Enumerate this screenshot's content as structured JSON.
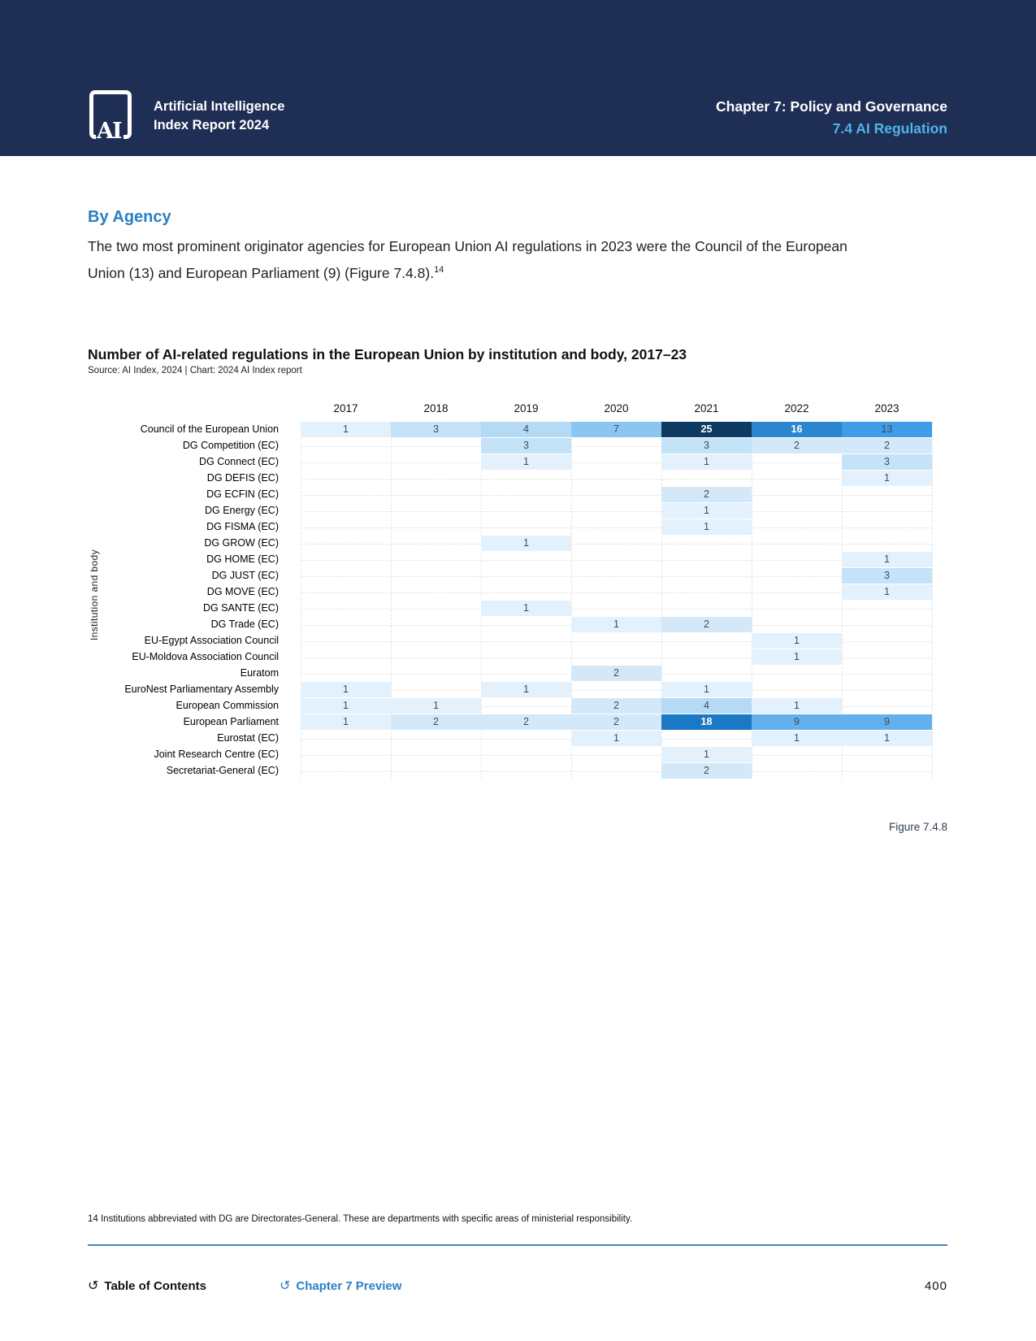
{
  "colors": {
    "navy": "#1f2e55",
    "accent": "#4db6ea",
    "heading_blue": "#2980c4",
    "link_blue": "#2b7fc7",
    "divider": "#4484bc",
    "cell_text": "#3f4d5a",
    "cell_text_light": "#ffffff"
  },
  "header": {
    "logo_mark": "AI",
    "logo_line1": "Artificial Intelligence",
    "logo_line2": "Index Report 2024",
    "chapter": "Chapter 7: Policy and Governance",
    "section": "7.4 AI Regulation"
  },
  "section": {
    "heading": "By Agency",
    "body": "The two most prominent originator agencies for European Union AI regulations in 2023 were the Council of the European Union (13) and European Parliament (9) (Figure 7.4.8).",
    "footnote_ref": "14"
  },
  "chart": {
    "title": "Number of AI-related regulations in the European Union by institution and body, 2017–23",
    "source": "Source: AI Index, 2024 | Chart: 2024 AI Index report",
    "y_axis_label": "Institution and body",
    "figure_caption": "Figure 7.4.8"
  },
  "chart_data": {
    "type": "heatmap",
    "x": [
      "2017",
      "2018",
      "2019",
      "2020",
      "2021",
      "2022",
      "2023"
    ],
    "xlabel": "",
    "ylabel": "Institution and body",
    "rows": [
      {
        "institution": "Council of the European Union",
        "values": [
          1,
          3,
          4,
          7,
          25,
          16,
          13
        ]
      },
      {
        "institution": "DG Competition (EC)",
        "values": [
          null,
          null,
          3,
          null,
          3,
          2,
          2
        ]
      },
      {
        "institution": "DG Connect (EC)",
        "values": [
          null,
          null,
          1,
          null,
          1,
          null,
          3
        ]
      },
      {
        "institution": "DG DEFIS (EC)",
        "values": [
          null,
          null,
          null,
          null,
          null,
          null,
          1
        ]
      },
      {
        "institution": "DG ECFIN (EC)",
        "values": [
          null,
          null,
          null,
          null,
          2,
          null,
          null
        ]
      },
      {
        "institution": "DG Energy (EC)",
        "values": [
          null,
          null,
          null,
          null,
          1,
          null,
          null
        ]
      },
      {
        "institution": "DG FISMA (EC)",
        "values": [
          null,
          null,
          null,
          null,
          1,
          null,
          null
        ]
      },
      {
        "institution": "DG GROW (EC)",
        "values": [
          null,
          null,
          1,
          null,
          null,
          null,
          null
        ]
      },
      {
        "institution": "DG HOME (EC)",
        "values": [
          null,
          null,
          null,
          null,
          null,
          null,
          1
        ]
      },
      {
        "institution": "DG JUST (EC)",
        "values": [
          null,
          null,
          null,
          null,
          null,
          null,
          3
        ]
      },
      {
        "institution": "DG MOVE (EC)",
        "values": [
          null,
          null,
          null,
          null,
          null,
          null,
          1
        ]
      },
      {
        "institution": "DG SANTE (EC)",
        "values": [
          null,
          null,
          1,
          null,
          null,
          null,
          null
        ]
      },
      {
        "institution": "DG Trade (EC)",
        "values": [
          null,
          null,
          null,
          1,
          2,
          null,
          null
        ]
      },
      {
        "institution": "EU-Egypt Association Council",
        "values": [
          null,
          null,
          null,
          null,
          null,
          1,
          null
        ]
      },
      {
        "institution": "EU-Moldova Association Council",
        "values": [
          null,
          null,
          null,
          null,
          null,
          1,
          null
        ]
      },
      {
        "institution": "Euratom",
        "values": [
          null,
          null,
          null,
          2,
          null,
          null,
          null
        ]
      },
      {
        "institution": "EuroNest Parliamentary Assembly",
        "values": [
          1,
          null,
          1,
          null,
          1,
          null,
          null
        ]
      },
      {
        "institution": "European Commission",
        "values": [
          1,
          1,
          null,
          2,
          4,
          1,
          null
        ]
      },
      {
        "institution": "European Parliament",
        "values": [
          1,
          2,
          2,
          2,
          18,
          9,
          9
        ]
      },
      {
        "institution": "Eurostat (EC)",
        "values": [
          null,
          null,
          null,
          1,
          null,
          1,
          1
        ]
      },
      {
        "institution": "Joint Research Centre (EC)",
        "values": [
          null,
          null,
          null,
          null,
          1,
          null,
          null
        ]
      },
      {
        "institution": "Secretariat-General (EC)",
        "values": [
          null,
          null,
          null,
          null,
          2,
          null,
          null
        ]
      }
    ],
    "value_range": [
      1,
      25
    ],
    "palette": {
      "1": "#e3f1fc",
      "2": "#d3e9fa",
      "3": "#c4e2f8",
      "4": "#b4daf6",
      "7": "#8bc5f1",
      "9": "#63b0ec",
      "13": "#3f9ce8",
      "16": "#2c86cf",
      "18": "#1a78c5",
      "25": "#0c3a61"
    },
    "light_text_values": [
      16,
      18,
      25
    ],
    "grid": "dashed",
    "legend": "none"
  },
  "footnote": "14 Institutions abbreviated with DG are Directorates-General. These are departments with specific areas of ministerial responsibility.",
  "footer": {
    "toc_label": "Table of Contents",
    "preview_label": "Chapter 7 Preview",
    "return_icon": "↺",
    "page_number": "400"
  }
}
